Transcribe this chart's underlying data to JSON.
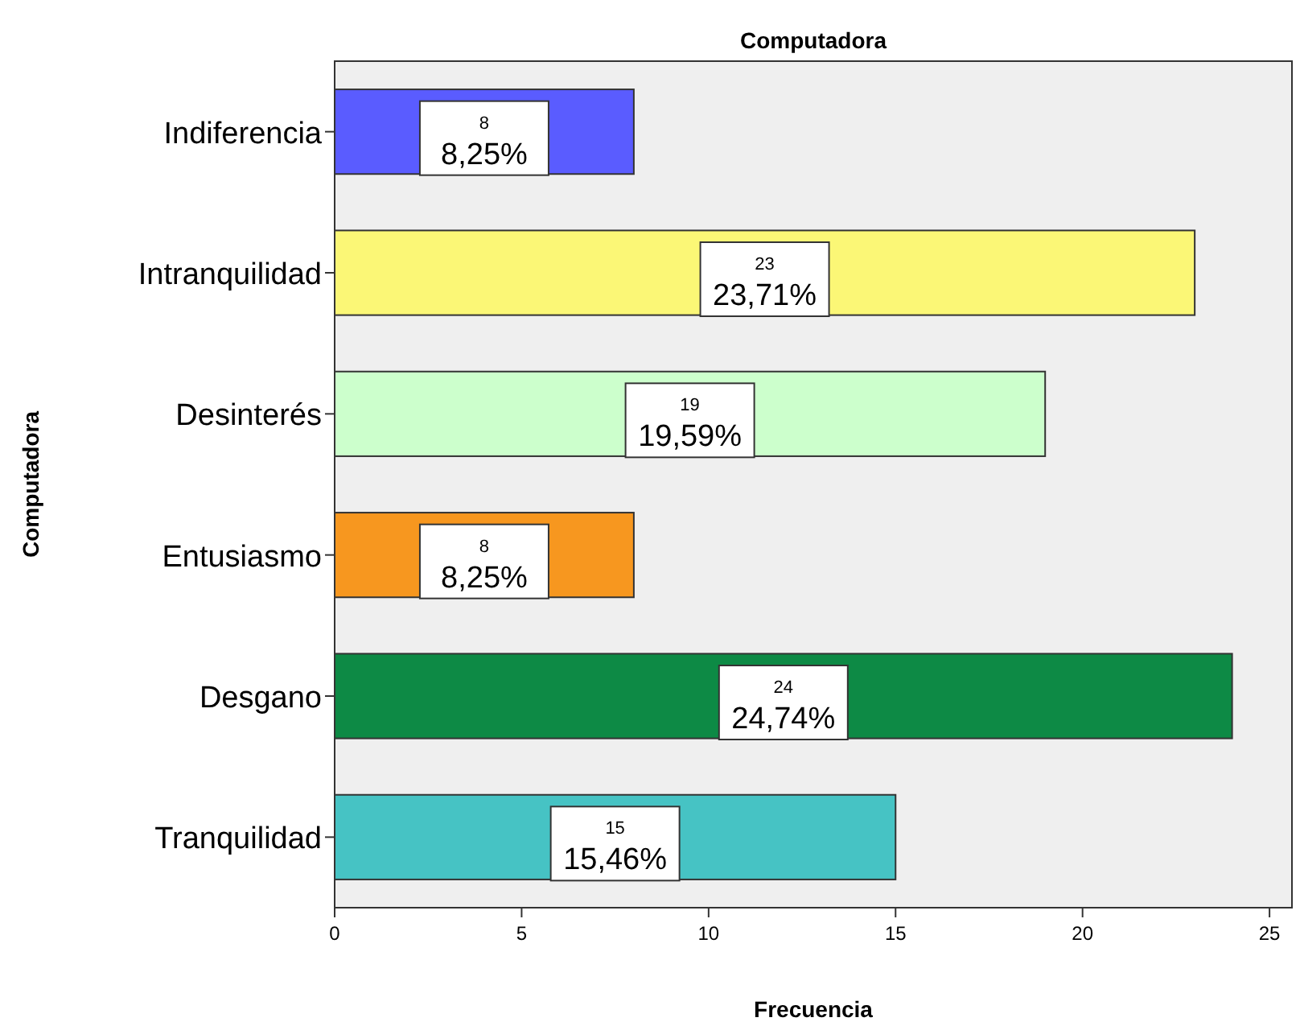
{
  "chart_data": {
    "type": "bar",
    "orientation": "horizontal",
    "title": "Computadora",
    "xlabel": "Frecuencia",
    "ylabel": "Computadora",
    "categories": [
      "Indiferencia",
      "Intranquilidad",
      "Desinterés",
      "Entusiasmo",
      "Desgano",
      "Tranquilidad"
    ],
    "values": [
      8,
      23,
      19,
      8,
      24,
      15
    ],
    "colors": [
      "#5a5cff",
      "#fbf776",
      "#ccffcc",
      "#f7971f",
      "#0d8a45",
      "#46c3c4"
    ],
    "value_labels": [
      "8\n8,25%",
      "23\n23,71%",
      "19\n19,59%",
      "8\n8,25%",
      "24\n24,74%",
      "15\n15,46%"
    ],
    "xlim": [
      0,
      25.6
    ],
    "xticks": [
      0,
      5,
      10,
      15,
      20,
      25
    ]
  }
}
